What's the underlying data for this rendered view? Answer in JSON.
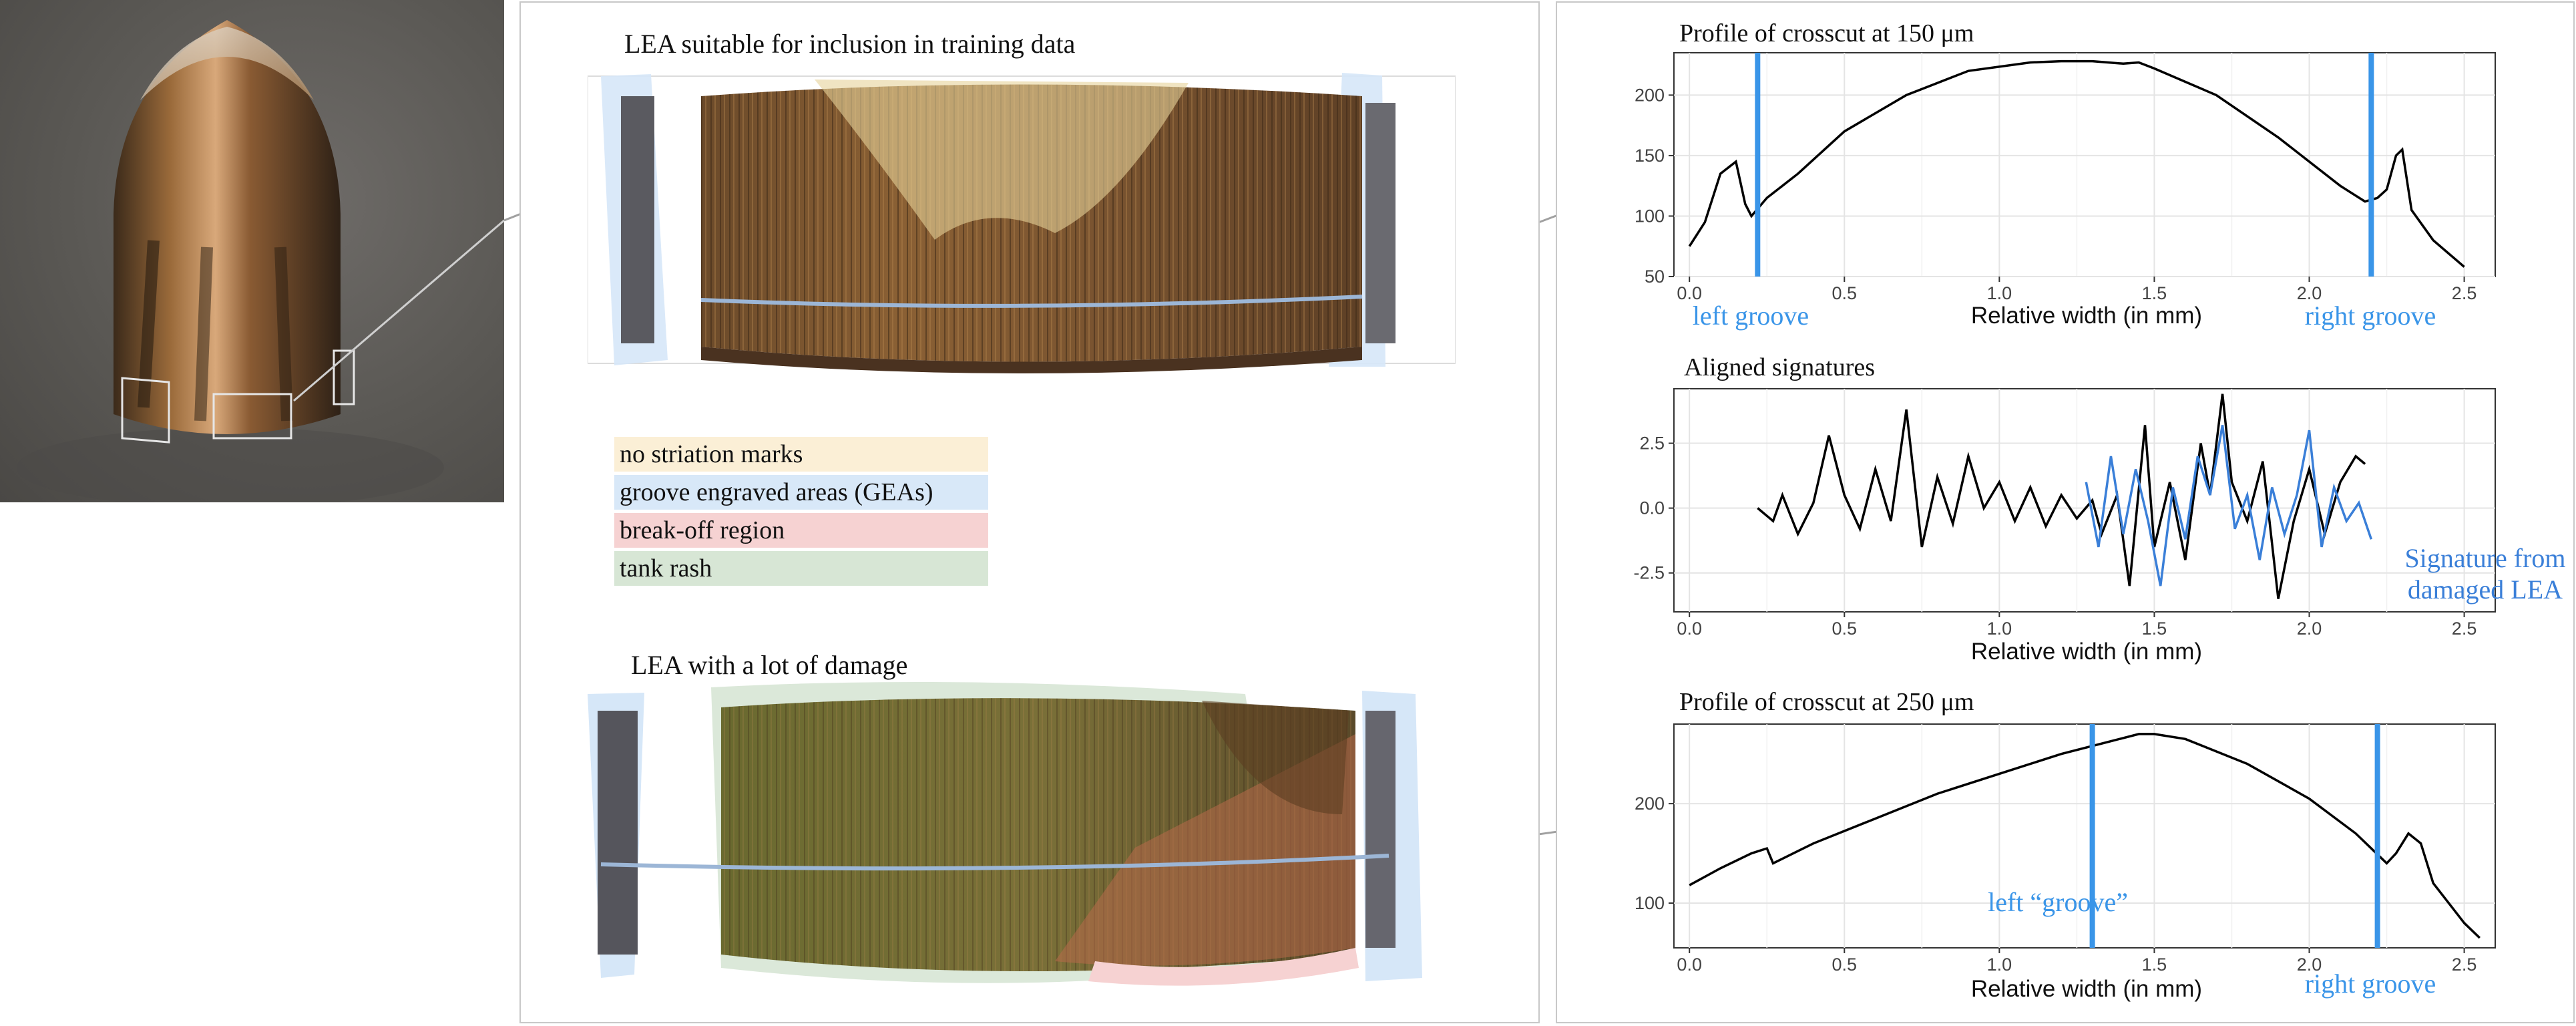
{
  "left_panel": {
    "title_top": "LEA suitable for inclusion in training data",
    "title_bottom": "LEA with a lot of damage",
    "legend": [
      {
        "label": "no striation marks",
        "color": "#fbefd6"
      },
      {
        "label": "groove engraved areas (GEAs)",
        "color": "#d8e8f8"
      },
      {
        "label": "break-off region",
        "color": "#f6d2d2"
      },
      {
        "label": "tank rash",
        "color": "#d7e6d5"
      }
    ]
  },
  "chart_data": [
    {
      "type": "line",
      "title": "Profile of crosscut at 150 μm",
      "xlabel": "Relative width (in mm)",
      "ylabel": "",
      "xlim": [
        -0.05,
        2.6
      ],
      "ylim": [
        50,
        235
      ],
      "xticks": [
        "0.0",
        "0.5",
        "1.0",
        "1.5",
        "2.0",
        "2.5"
      ],
      "yticks": [
        "50",
        "100",
        "150",
        "200"
      ],
      "x": [
        0.0,
        0.05,
        0.1,
        0.15,
        0.18,
        0.2,
        0.25,
        0.35,
        0.5,
        0.7,
        0.9,
        1.1,
        1.2,
        1.3,
        1.4,
        1.45,
        1.5,
        1.7,
        1.9,
        2.0,
        2.1,
        2.18,
        2.22,
        2.25,
        2.28,
        2.3,
        2.33,
        2.4,
        2.5
      ],
      "y": [
        75,
        95,
        135,
        145,
        110,
        100,
        115,
        135,
        170,
        200,
        220,
        227,
        228,
        228,
        226,
        227,
        222,
        200,
        165,
        145,
        125,
        112,
        115,
        122,
        150,
        155,
        105,
        80,
        58
      ],
      "grooves": [
        {
          "x": 0.22,
          "label": "left groove"
        },
        {
          "x": 2.2,
          "label": "right groove"
        }
      ],
      "groove_color": "#3a95e8"
    },
    {
      "type": "line",
      "title": "Aligned signatures",
      "xlabel": "Relative width (in mm)",
      "ylabel": "",
      "xlim": [
        -0.05,
        2.6
      ],
      "ylim": [
        -4,
        4.6
      ],
      "xticks": [
        "0.0",
        "0.5",
        "1.0",
        "1.5",
        "2.0",
        "2.5"
      ],
      "yticks": [
        "2.5",
        "0.0",
        "-2.5"
      ],
      "series": [
        {
          "color": "#000000",
          "x": [
            0.22,
            0.27,
            0.3,
            0.35,
            0.4,
            0.45,
            0.5,
            0.55,
            0.6,
            0.65,
            0.7,
            0.75,
            0.8,
            0.85,
            0.9,
            0.95,
            1.0,
            1.05,
            1.1,
            1.15,
            1.2,
            1.25,
            1.3,
            1.33,
            1.38,
            1.42,
            1.47,
            1.5,
            1.55,
            1.6,
            1.65,
            1.68,
            1.72,
            1.75,
            1.8,
            1.85,
            1.9,
            1.95,
            2.0,
            2.05,
            2.1,
            2.15,
            2.18
          ],
          "y": [
            0.0,
            -0.5,
            0.5,
            -1.0,
            0.2,
            2.8,
            0.5,
            -0.8,
            1.5,
            -0.5,
            3.8,
            -1.5,
            1.2,
            -0.6,
            2.0,
            0.0,
            1.0,
            -0.5,
            0.8,
            -0.7,
            0.5,
            -0.4,
            0.3,
            -1.0,
            0.5,
            -3.0,
            3.2,
            -1.5,
            1.0,
            -2.0,
            2.5,
            0.5,
            4.4,
            1.0,
            -0.5,
            1.8,
            -3.5,
            -0.5,
            1.5,
            -1.0,
            1.0,
            2.0,
            1.7
          ]
        },
        {
          "color": "#3a7fd8",
          "name": "Signature from damaged LEA",
          "x": [
            1.28,
            1.32,
            1.36,
            1.4,
            1.44,
            1.48,
            1.52,
            1.56,
            1.6,
            1.64,
            1.68,
            1.72,
            1.76,
            1.8,
            1.84,
            1.88,
            1.92,
            1.96,
            2.0,
            2.04,
            2.08,
            2.12,
            2.16,
            2.2
          ],
          "y": [
            1.0,
            -1.5,
            2.0,
            -1.0,
            1.5,
            -0.5,
            -3.0,
            0.8,
            -1.2,
            2.0,
            0.5,
            3.2,
            -0.8,
            0.5,
            -2.0,
            0.8,
            -1.0,
            0.5,
            3.0,
            -1.5,
            0.8,
            -0.5,
            0.2,
            -1.2
          ]
        }
      ],
      "annotation": [
        "Signature from",
        "damaged LEA"
      ],
      "annotation_color": "#3a7fd8"
    },
    {
      "type": "line",
      "title": "Profile of crosscut at 250 μm",
      "xlabel": "Relative width (in mm)",
      "ylabel": "",
      "xlim": [
        -0.05,
        2.6
      ],
      "ylim": [
        55,
        280
      ],
      "xticks": [
        "0.0",
        "0.5",
        "1.0",
        "1.5",
        "2.0",
        "2.5"
      ],
      "yticks": [
        "100",
        "200"
      ],
      "x": [
        0.0,
        0.1,
        0.2,
        0.25,
        0.27,
        0.4,
        0.6,
        0.8,
        1.0,
        1.2,
        1.35,
        1.45,
        1.5,
        1.6,
        1.8,
        2.0,
        2.15,
        2.25,
        2.28,
        2.32,
        2.36,
        2.4,
        2.5,
        2.55
      ],
      "y": [
        118,
        135,
        150,
        155,
        140,
        160,
        185,
        210,
        230,
        250,
        262,
        270,
        270,
        265,
        240,
        205,
        170,
        140,
        150,
        170,
        160,
        120,
        80,
        65
      ],
      "grooves": [
        {
          "x": 1.3,
          "label": "left “groove”"
        },
        {
          "x": 2.22,
          "label": "right groove"
        }
      ],
      "groove_color": "#3a95e8"
    }
  ]
}
